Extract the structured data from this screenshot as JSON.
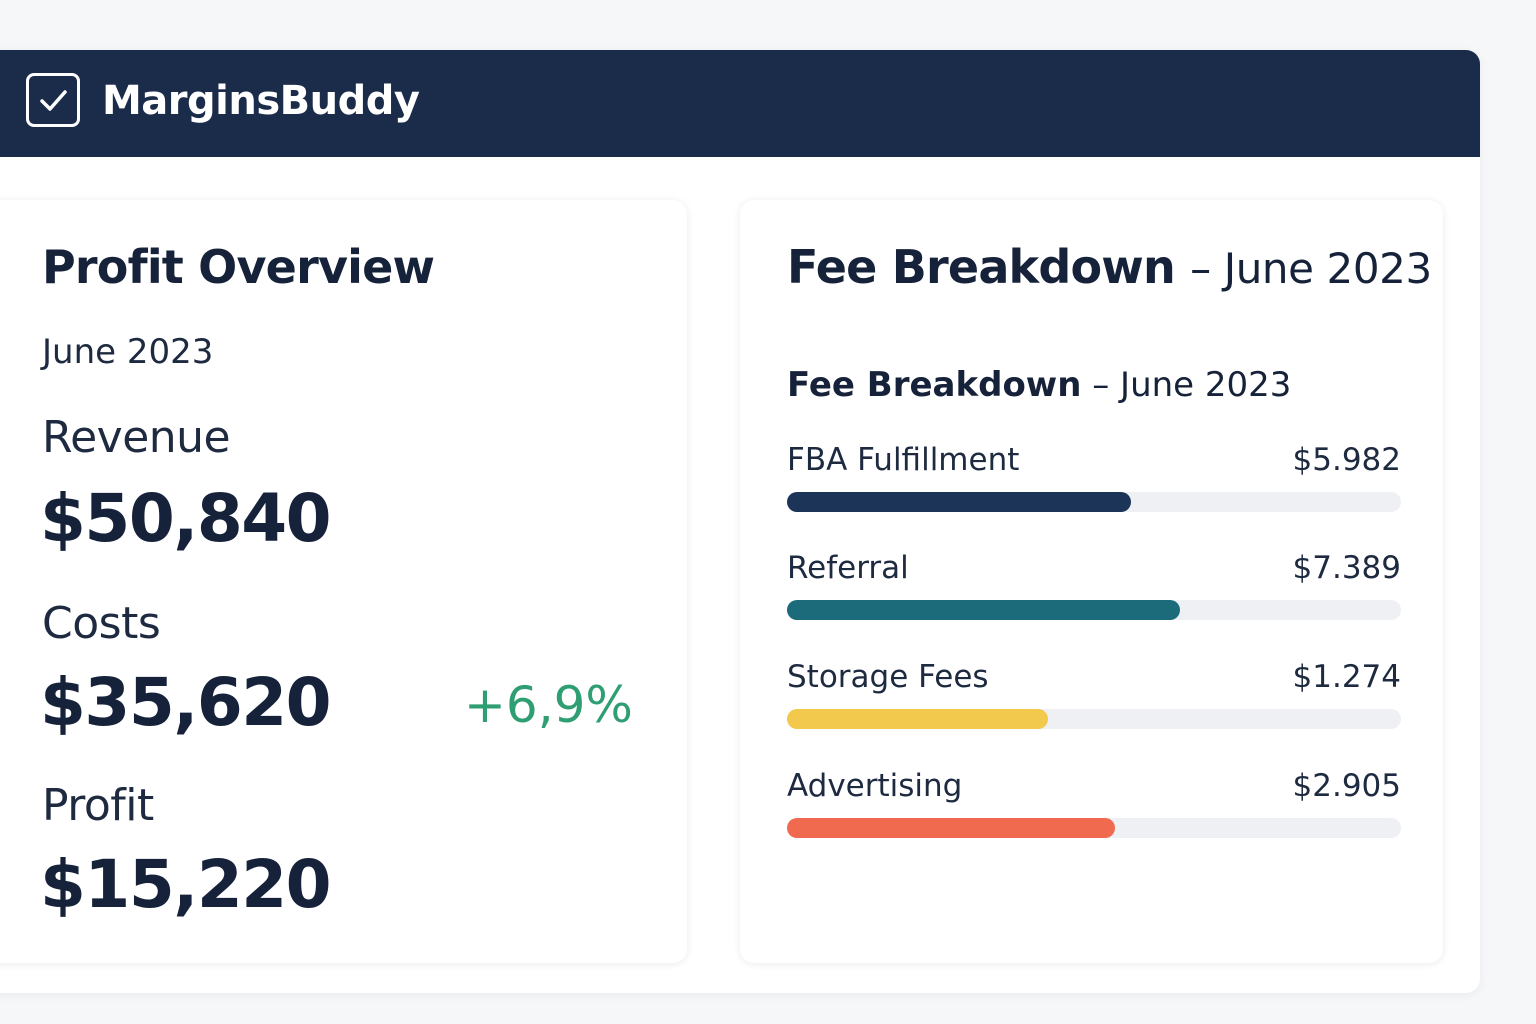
{
  "app": {
    "name": "MarginsBuddy"
  },
  "profit_overview": {
    "title": "Profit Overview",
    "period": "June 2023",
    "revenue": {
      "label": "Revenue",
      "value": "$50,840"
    },
    "costs": {
      "label": "Costs",
      "value": "$35,620",
      "change": "+6,9%"
    },
    "profit": {
      "label": "Profit",
      "value": "$15,220"
    }
  },
  "fee_breakdown": {
    "title": "Fee Breakdown",
    "title_suffix": "– June 2023",
    "subtitle_bold": "Fee Breakdown",
    "subtitle_suffix": "– June 2023",
    "items": [
      {
        "label": "FBA Fulfillment",
        "amount": "$5.982",
        "fill": 0.56,
        "color": "#1b3458"
      },
      {
        "label": "Referral",
        "amount": "$7.389",
        "fill": 0.64,
        "color": "#1b6b7b"
      },
      {
        "label": "Storage Fees",
        "amount": "$1.274",
        "fill": 0.425,
        "color": "#f2c94c"
      },
      {
        "label": "Advertising",
        "amount": "$2.905",
        "fill": 0.535,
        "color": "#ef6a4f"
      }
    ]
  },
  "colors": {
    "header_bg": "#1b2c4b",
    "positive": "#2f9e72"
  }
}
